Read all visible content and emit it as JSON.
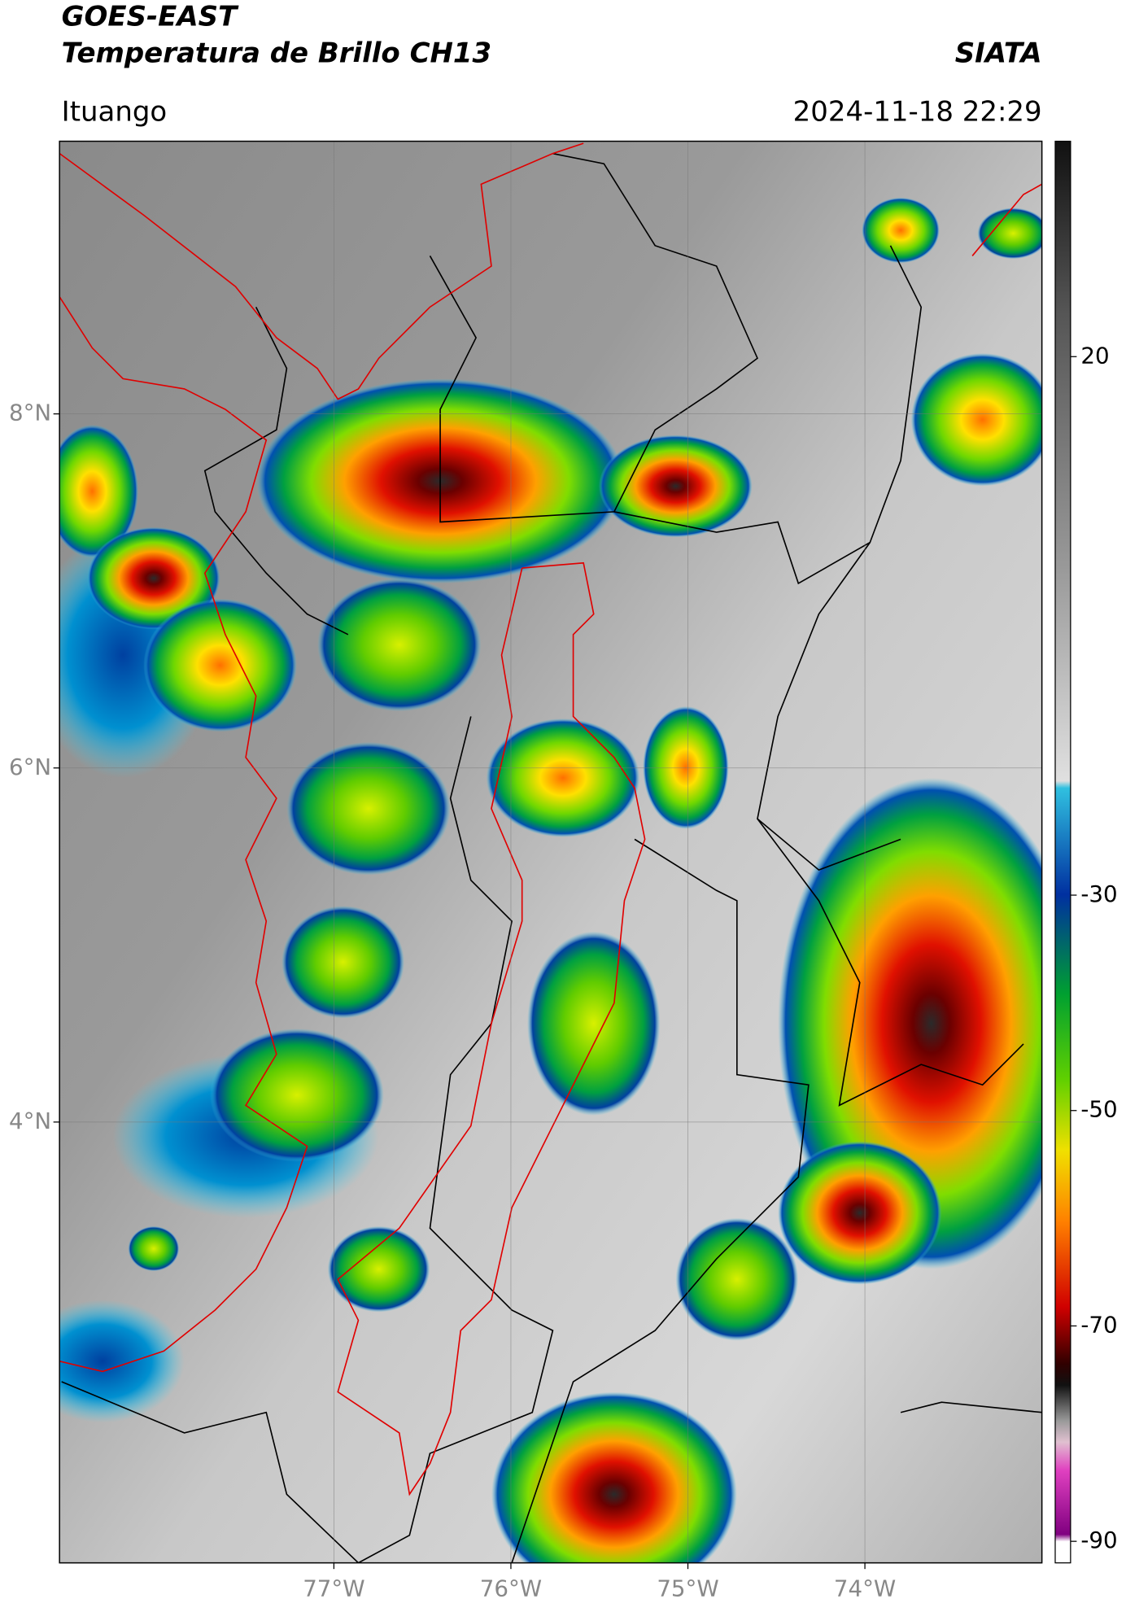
{
  "header": {
    "satellite": "GOES-EAST",
    "product": "Temperatura de Brillo CH13",
    "agency": "SIATA",
    "location": "Ituango",
    "datetime": "2024-11-18 22:29"
  },
  "map": {
    "xlim": [
      -78.55,
      -73.0
    ],
    "ylim": [
      1.51,
      9.54
    ],
    "xticks": [
      {
        "value": -77,
        "label": "77°W"
      },
      {
        "value": -76,
        "label": "76°W"
      },
      {
        "value": -75,
        "label": "75°W"
      },
      {
        "value": -74,
        "label": "74°W"
      }
    ],
    "yticks": [
      {
        "value": 8,
        "label": "8°N"
      },
      {
        "value": 6,
        "label": "6°N"
      },
      {
        "value": 4,
        "label": "4°N"
      }
    ]
  },
  "colorbar": {
    "lim": [
      -92,
      40
    ],
    "ticks": [
      20,
      -30,
      -50,
      -70,
      -90
    ]
  }
}
